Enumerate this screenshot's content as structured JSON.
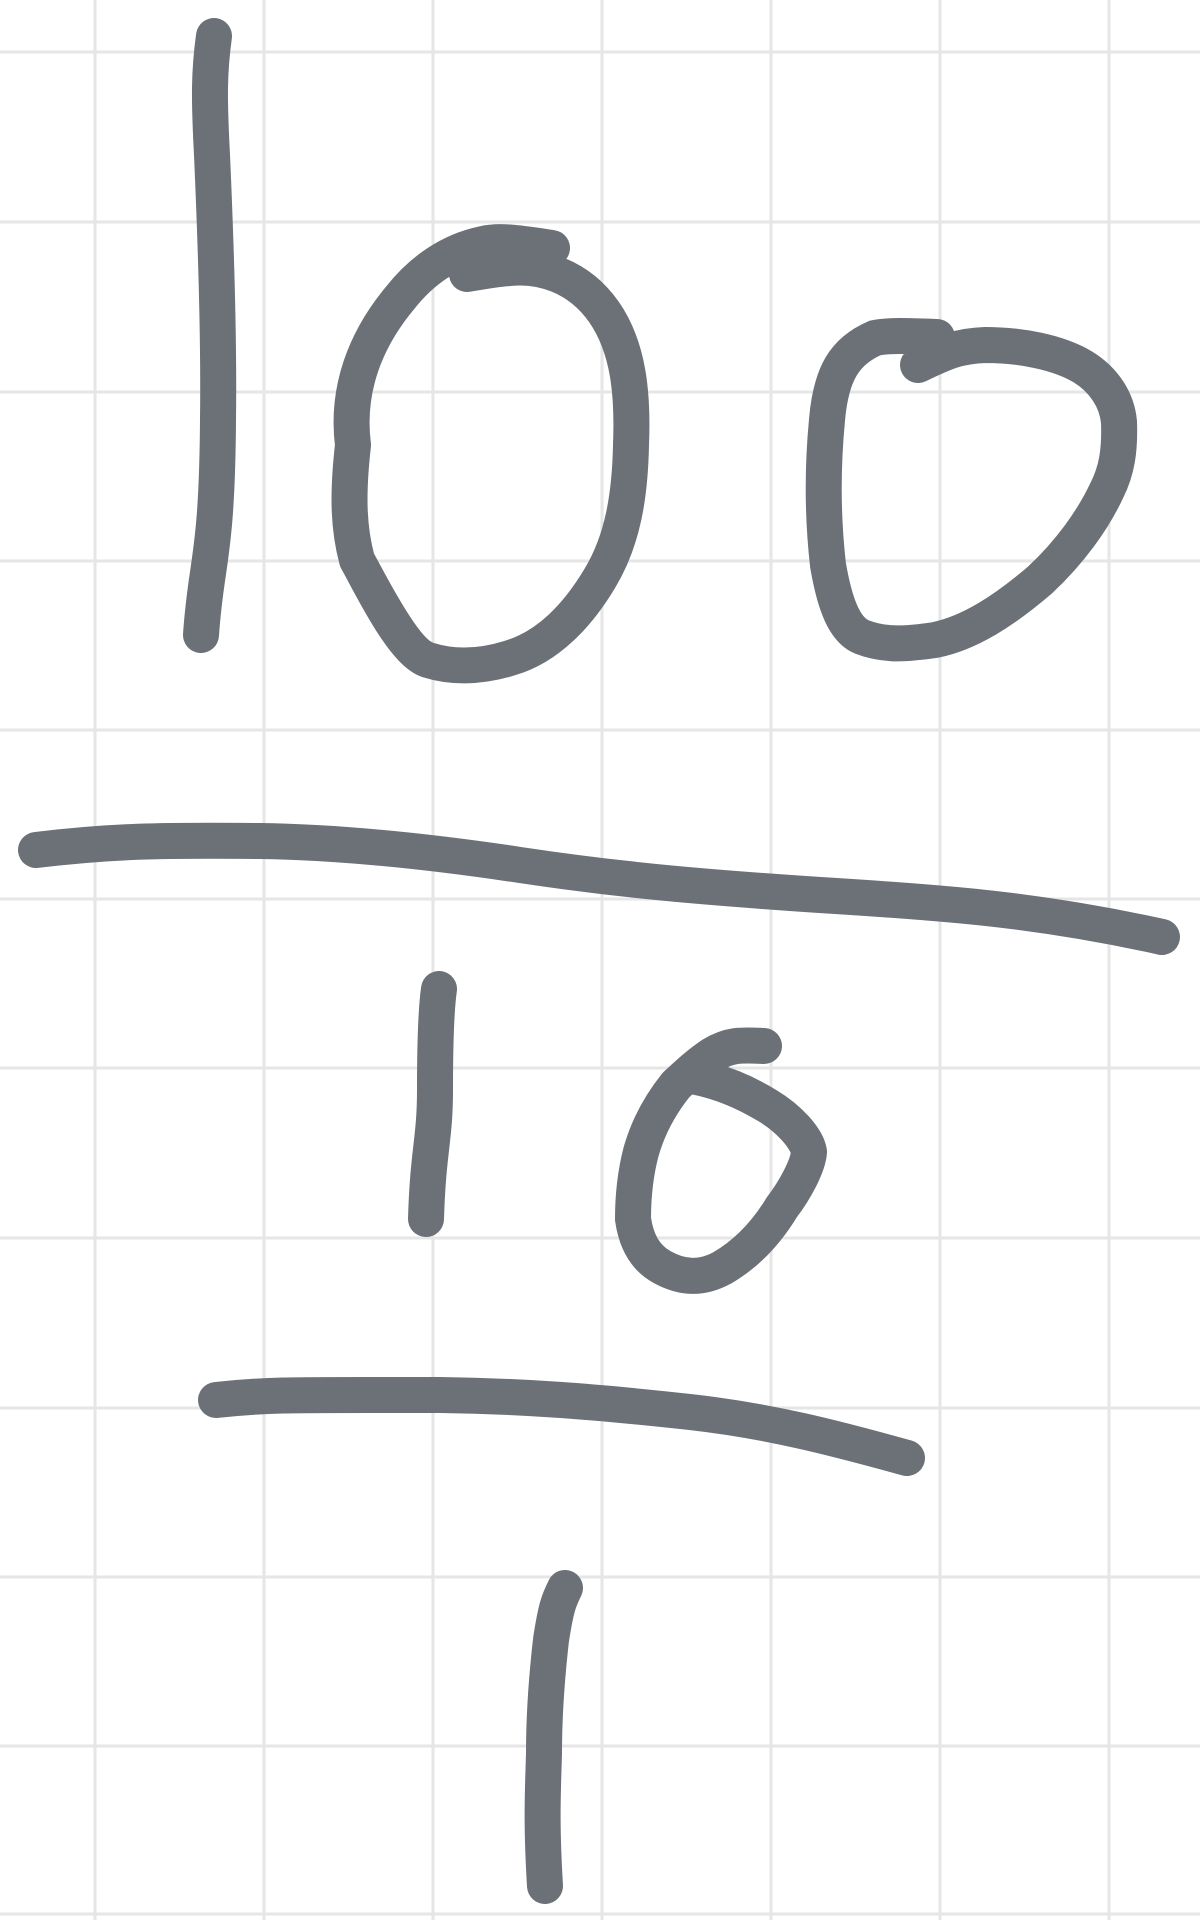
{
  "canvas": {
    "background_color": "#ffffff",
    "grid_color": "#e6e6e6",
    "ink_color": "#6b7177"
  },
  "handwriting": {
    "description_text": "100 / 10 / 1",
    "lines": [
      {
        "text": "100"
      },
      {
        "text": "10"
      },
      {
        "text": "1"
      }
    ]
  }
}
